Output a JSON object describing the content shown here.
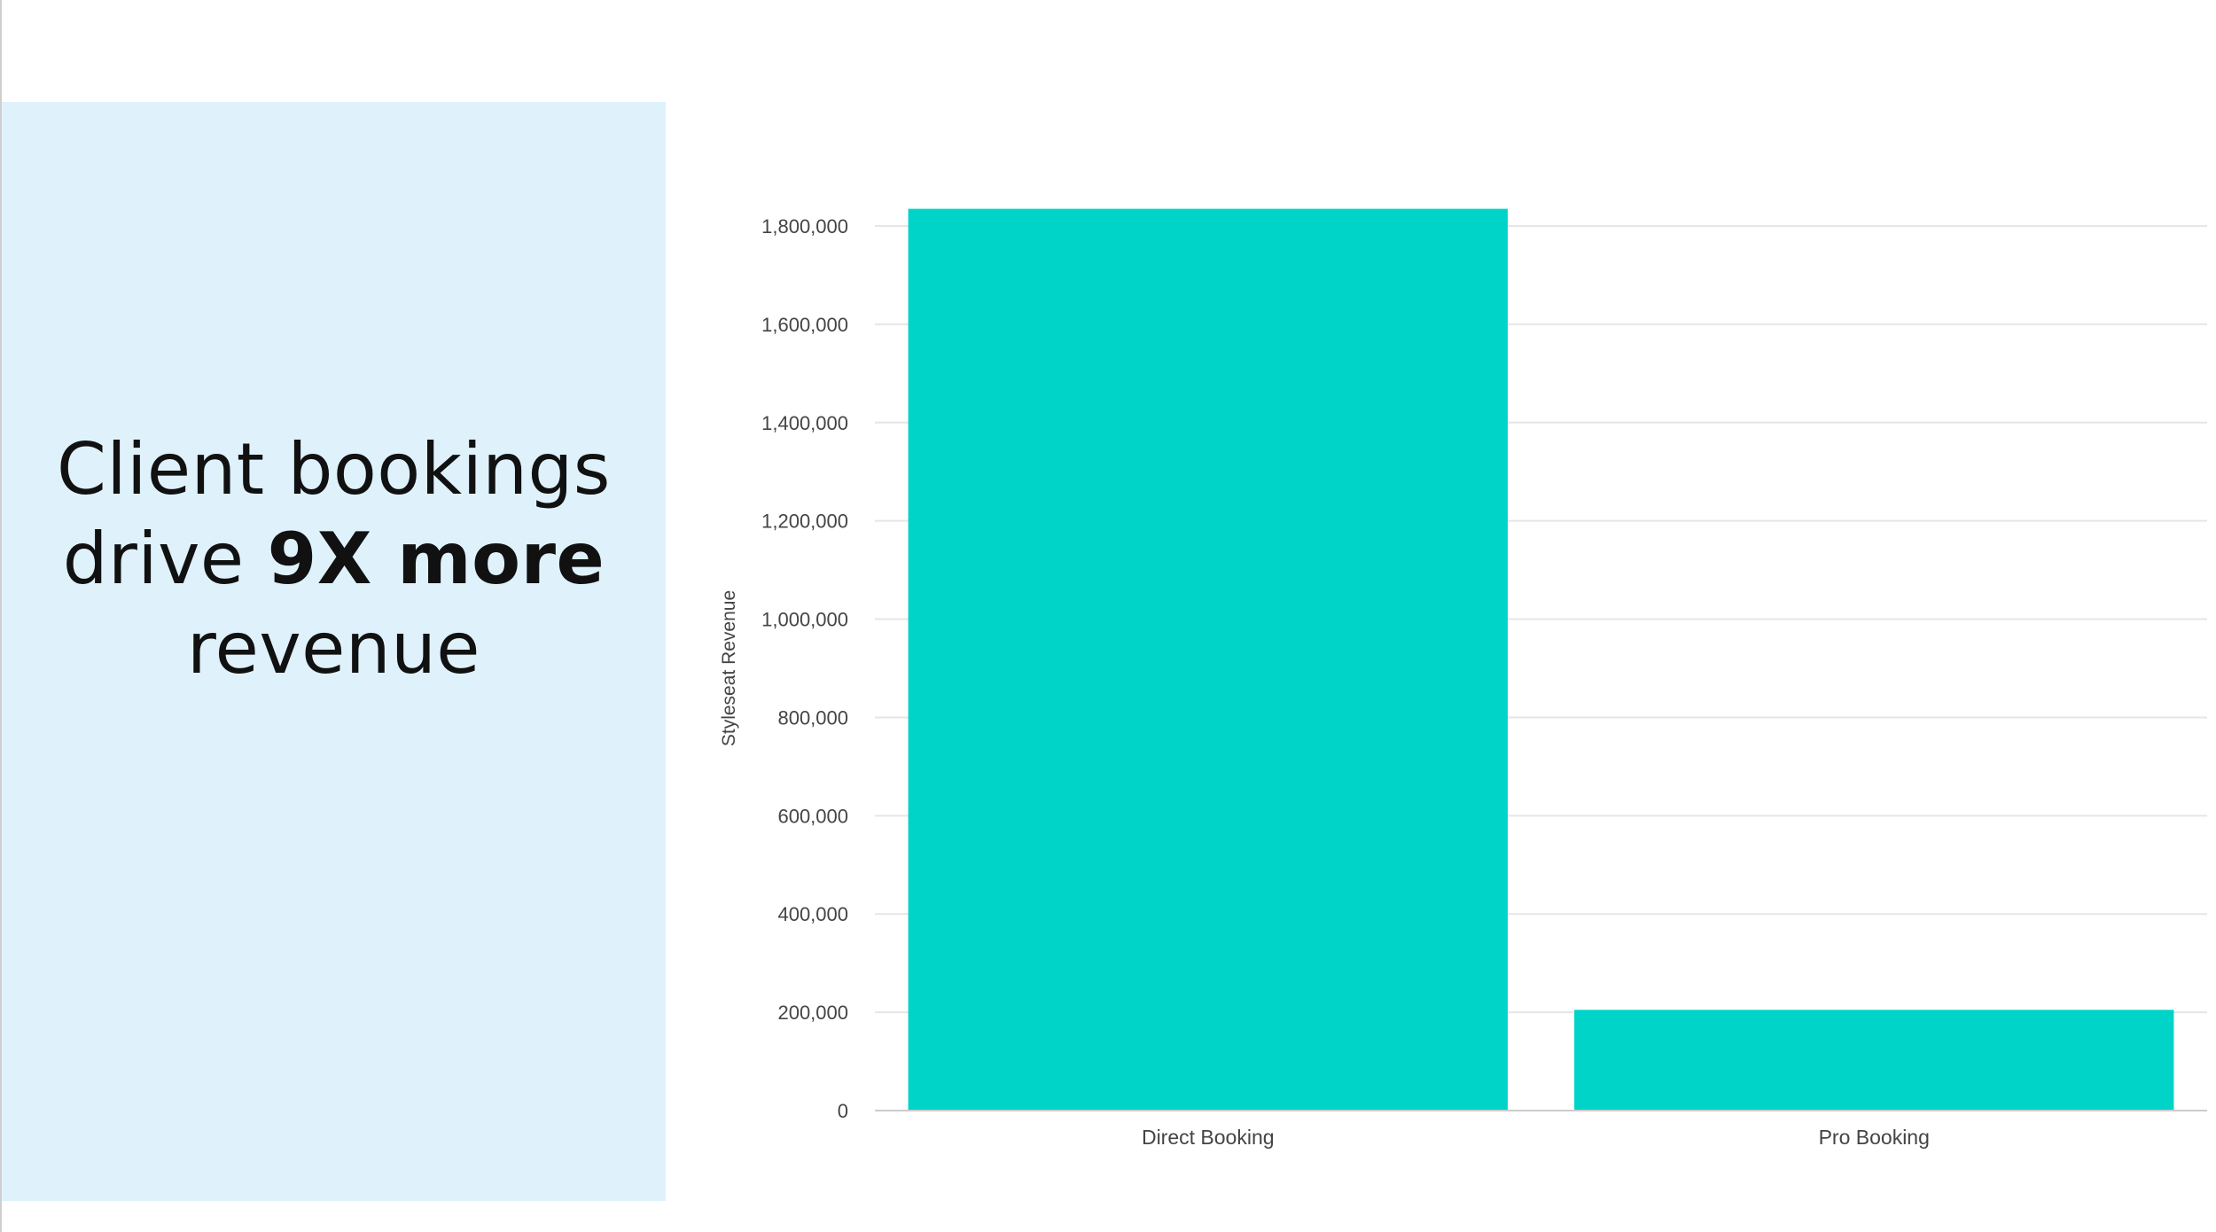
{
  "headline": {
    "line1": "Client bookings",
    "line2_pre": "drive ",
    "line2_bold": "9X more",
    "line3": "revenue"
  },
  "colors": {
    "panel_background": "#dff2fc",
    "bar": "#00d4c8",
    "gridline": "#e6e6e6",
    "axis": "#cccccc",
    "text": "#444444"
  },
  "chart_data": {
    "type": "bar",
    "title": "",
    "xlabel": "",
    "ylabel": "Styleseat Revenue",
    "categories": [
      "Direct Booking",
      "Pro Booking"
    ],
    "values": [
      1835000,
      205000
    ],
    "ylim": [
      0,
      1800000
    ],
    "y_ticks": [
      0,
      200000,
      400000,
      600000,
      800000,
      1000000,
      1200000,
      1400000,
      1600000,
      1800000
    ],
    "y_tick_labels": [
      "0",
      "200,000",
      "400,000",
      "600,000",
      "800,000",
      "1,000,000",
      "1,200,000",
      "1,400,000",
      "1,600,000",
      "1,800,000"
    ],
    "grid": true,
    "legend": "none"
  }
}
